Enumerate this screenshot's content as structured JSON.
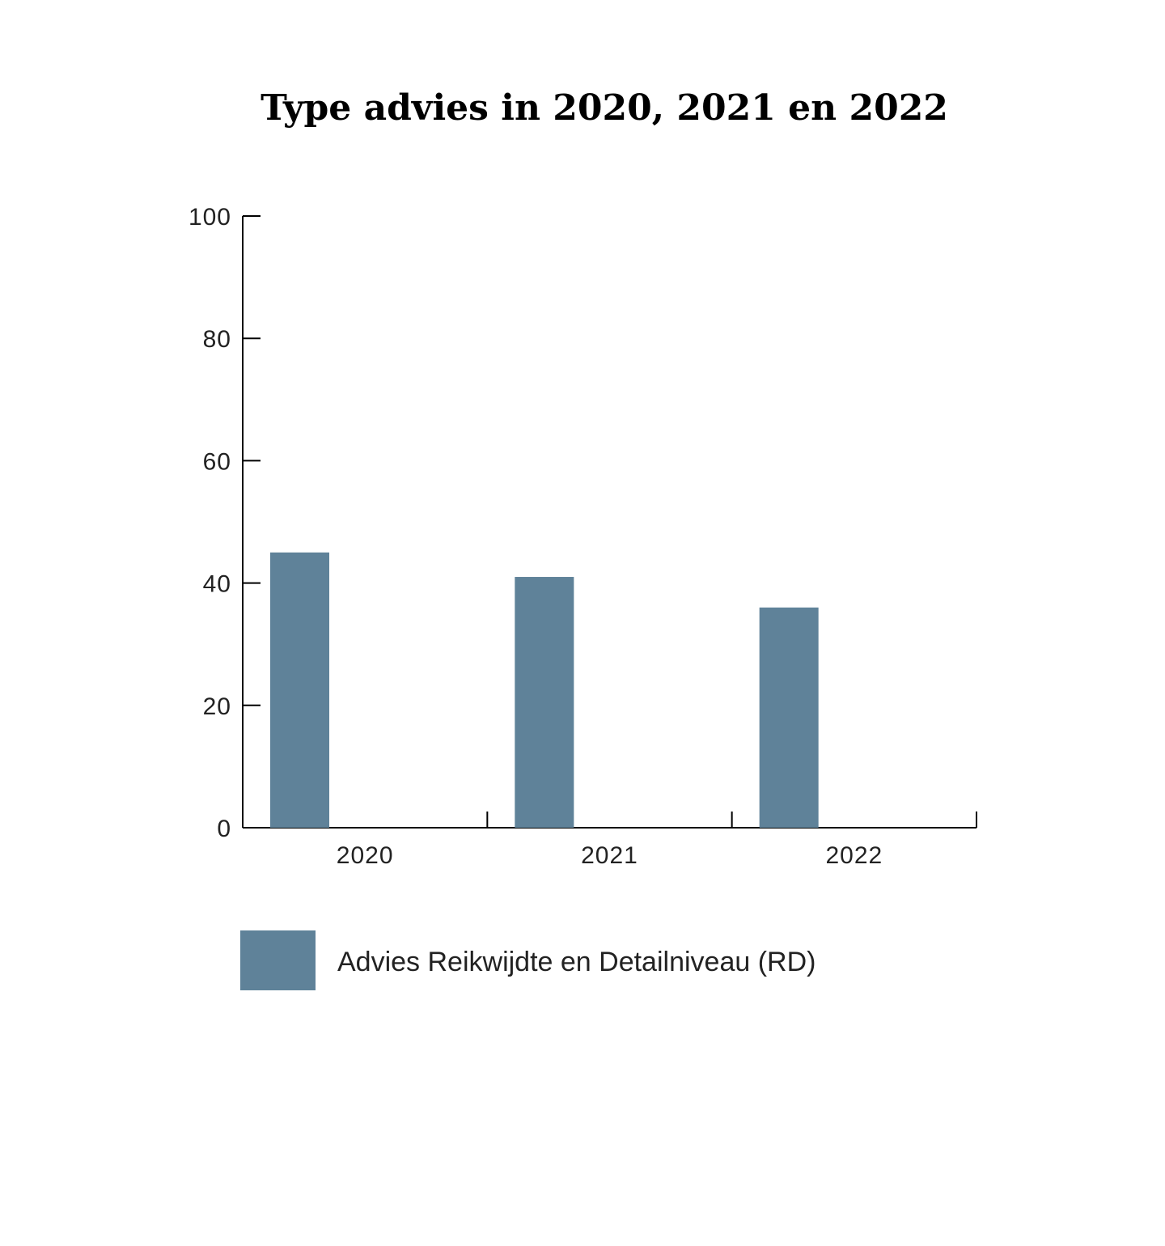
{
  "chart_data": {
    "type": "bar",
    "title": "Type advies in 2020, 2021 en 2022",
    "categories": [
      "2020",
      "2021",
      "2022"
    ],
    "series": [
      {
        "name": "Advies Reikwijdte en Detailniveau (RD)",
        "values": [
          45,
          41,
          36
        ],
        "color": "#5f8299"
      }
    ],
    "ylim": [
      0,
      100
    ],
    "yticks": [
      "0",
      "20",
      "40",
      "60",
      "80",
      "100"
    ],
    "grid": false,
    "legend_position": "bottom"
  }
}
